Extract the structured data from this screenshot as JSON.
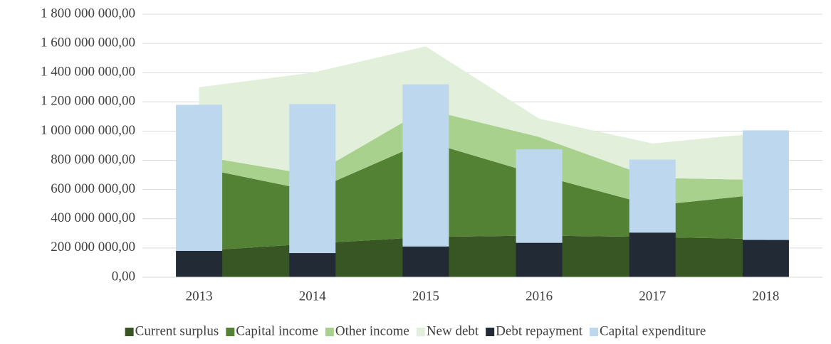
{
  "chart_data": {
    "type": "combo",
    "categories": [
      "2013",
      "2014",
      "2015",
      "2016",
      "2017",
      "2018"
    ],
    "series": [
      {
        "name": "Current surplus",
        "type": "area",
        "color": "#375623",
        "values": [
          180000000,
          230000000,
          275000000,
          285000000,
          275000000,
          260000000
        ]
      },
      {
        "name": "Capital income",
        "type": "area",
        "color": "#548235",
        "values": [
          570000000,
          360000000,
          655000000,
          415000000,
          215000000,
          310000000
        ]
      },
      {
        "name": "Other income",
        "type": "area",
        "color": "#a9d18e",
        "values": [
          80000000,
          110000000,
          220000000,
          260000000,
          190000000,
          95000000
        ]
      },
      {
        "name": "New debt",
        "type": "area",
        "color": "#e2efda",
        "values": [
          470000000,
          700000000,
          430000000,
          125000000,
          235000000,
          325000000
        ]
      },
      {
        "name": "Debt repayment",
        "type": "bar",
        "color": "#222a35",
        "values": [
          180000000,
          165000000,
          210000000,
          235000000,
          305000000,
          255000000
        ]
      },
      {
        "name": "Capital expenditure",
        "type": "bar",
        "color": "#bdd7ee",
        "values": [
          1000000000,
          1020000000,
          1110000000,
          640000000,
          500000000,
          750000000
        ]
      }
    ],
    "ylim": [
      0,
      1800000000
    ],
    "yticks": [
      {
        "value": 0,
        "label": "0,00"
      },
      {
        "value": 200000000,
        "label": "200 000 000,00"
      },
      {
        "value": 400000000,
        "label": "400 000 000,00"
      },
      {
        "value": 600000000,
        "label": "600 000 000,00"
      },
      {
        "value": 800000000,
        "label": "800 000 000,00"
      },
      {
        "value": 1000000000,
        "label": "1 000 000 000,00"
      },
      {
        "value": 1200000000,
        "label": "1 200 000 000,00"
      },
      {
        "value": 1400000000,
        "label": "1 400 000 000,00"
      },
      {
        "value": 1600000000,
        "label": "1 600 000 000,00"
      },
      {
        "value": 1800000000,
        "label": "1 800 000 000,00"
      }
    ],
    "grid": true,
    "legend": "bottom"
  }
}
